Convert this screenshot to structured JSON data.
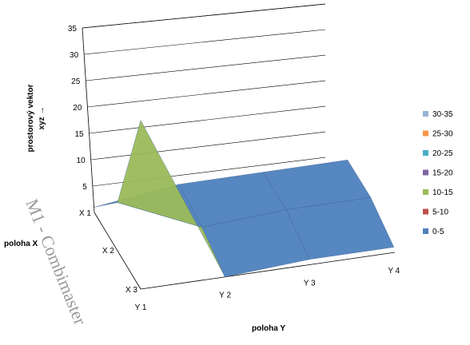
{
  "chart_data": {
    "type": "surface",
    "title": "",
    "zlabel_line1": "prostorový vektor",
    "zlabel_line2": "xyz →",
    "xlabel": "poloha X",
    "ylabel": "poloha Y",
    "z_ticks": [
      "5",
      "10",
      "15",
      "20",
      "25",
      "30",
      "35"
    ],
    "zlim": [
      0,
      35
    ],
    "x_categories": [
      "X 1",
      "X 2",
      "X 3"
    ],
    "y_categories": [
      "Y 1",
      "Y 2",
      "Y 3",
      "Y 4"
    ],
    "values_by_x": [
      {
        "x": "X 1",
        "values": [
          1,
          3,
          3,
          3
        ]
      },
      {
        "x": "X 2",
        "values": [
          9,
          2,
          3,
          3
        ]
      },
      {
        "x": "X 3",
        "values": [
          32,
          0,
          1,
          1
        ]
      }
    ],
    "bands": [
      {
        "label": "30-35",
        "color": "#95b3d7"
      },
      {
        "label": "25-30",
        "color": "#f79646"
      },
      {
        "label": "20-25",
        "color": "#4bacc6"
      },
      {
        "label": "15-20",
        "color": "#8064a2"
      },
      {
        "label": "10-15",
        "color": "#9bbb59"
      },
      {
        "label": "5-10",
        "color": "#c0504d"
      },
      {
        "label": "0-5",
        "color": "#4f81bd"
      }
    ],
    "legend_position": "right",
    "grid": true
  },
  "watermark": "M1 - Combimaster"
}
